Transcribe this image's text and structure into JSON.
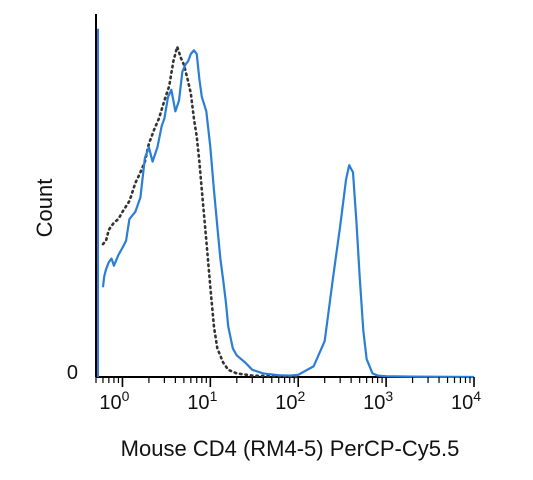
{
  "chart_data": {
    "type": "line",
    "title": "",
    "xlabel": "Mouse CD4 (RM4-5) PerCP-Cy5.5",
    "ylabel": "Count",
    "x_scale": "log",
    "xlim": [
      0.5,
      10000
    ],
    "ylim": [
      0,
      1
    ],
    "x_ticks": [
      {
        "base": "10",
        "exp": "0",
        "value": 1
      },
      {
        "base": "10",
        "exp": "1",
        "value": 10
      },
      {
        "base": "10",
        "exp": "2",
        "value": 100
      },
      {
        "base": "10",
        "exp": "3",
        "value": 1000
      },
      {
        "base": "10",
        "exp": "4",
        "value": 10000
      }
    ],
    "y_ticks": [
      {
        "label": "0",
        "value": 0
      }
    ],
    "grid": false,
    "series": [
      {
        "style": "dotted",
        "color": "#333333",
        "x": [
          0.6,
          0.65,
          0.7,
          0.8,
          0.9,
          1.0,
          1.2,
          1.4,
          1.6,
          1.8,
          2.0,
          2.3,
          2.6,
          3.0,
          3.4,
          3.8,
          4.2,
          4.6,
          5.0,
          5.5,
          6.0,
          6.5,
          7.0,
          7.5,
          8.0,
          9.0,
          10,
          11,
          12,
          14,
          16,
          20,
          30,
          50,
          100
        ],
        "y": [
          0.37,
          0.38,
          0.41,
          0.43,
          0.44,
          0.46,
          0.49,
          0.54,
          0.57,
          0.6,
          0.65,
          0.69,
          0.72,
          0.77,
          0.81,
          0.88,
          0.92,
          0.89,
          0.87,
          0.83,
          0.79,
          0.72,
          0.67,
          0.6,
          0.52,
          0.38,
          0.25,
          0.14,
          0.08,
          0.04,
          0.02,
          0.01,
          0.004,
          0.002,
          0.0
        ]
      },
      {
        "style": "solid",
        "color": "#2a7ed6",
        "x": [
          0.6,
          0.62,
          0.65,
          0.7,
          0.75,
          0.8,
          0.9,
          1.0,
          1.1,
          1.2,
          1.4,
          1.6,
          1.8,
          2.0,
          2.2,
          2.5,
          2.8,
          3.0,
          3.3,
          3.6,
          4.0,
          4.4,
          4.8,
          5.2,
          5.6,
          6.0,
          6.5,
          7.0,
          7.5,
          8.0,
          9.0,
          10,
          11,
          12,
          13,
          14,
          15,
          16,
          18,
          20,
          25,
          30,
          40,
          60,
          80,
          100,
          150,
          200,
          250,
          300,
          350,
          380,
          420,
          460,
          500,
          550,
          600,
          700,
          800,
          1000,
          2000,
          10000
        ],
        "y": [
          0.25,
          0.28,
          0.3,
          0.32,
          0.33,
          0.31,
          0.34,
          0.36,
          0.38,
          0.44,
          0.46,
          0.5,
          0.61,
          0.64,
          0.6,
          0.64,
          0.7,
          0.72,
          0.78,
          0.8,
          0.74,
          0.77,
          0.85,
          0.87,
          0.88,
          0.9,
          0.91,
          0.9,
          0.83,
          0.78,
          0.74,
          0.64,
          0.52,
          0.42,
          0.33,
          0.27,
          0.21,
          0.14,
          0.08,
          0.06,
          0.04,
          0.02,
          0.01,
          0.005,
          0.004,
          0.006,
          0.03,
          0.1,
          0.28,
          0.42,
          0.55,
          0.59,
          0.57,
          0.43,
          0.28,
          0.13,
          0.05,
          0.01,
          0.004,
          0.002,
          0.001,
          0.0
        ]
      }
    ]
  }
}
